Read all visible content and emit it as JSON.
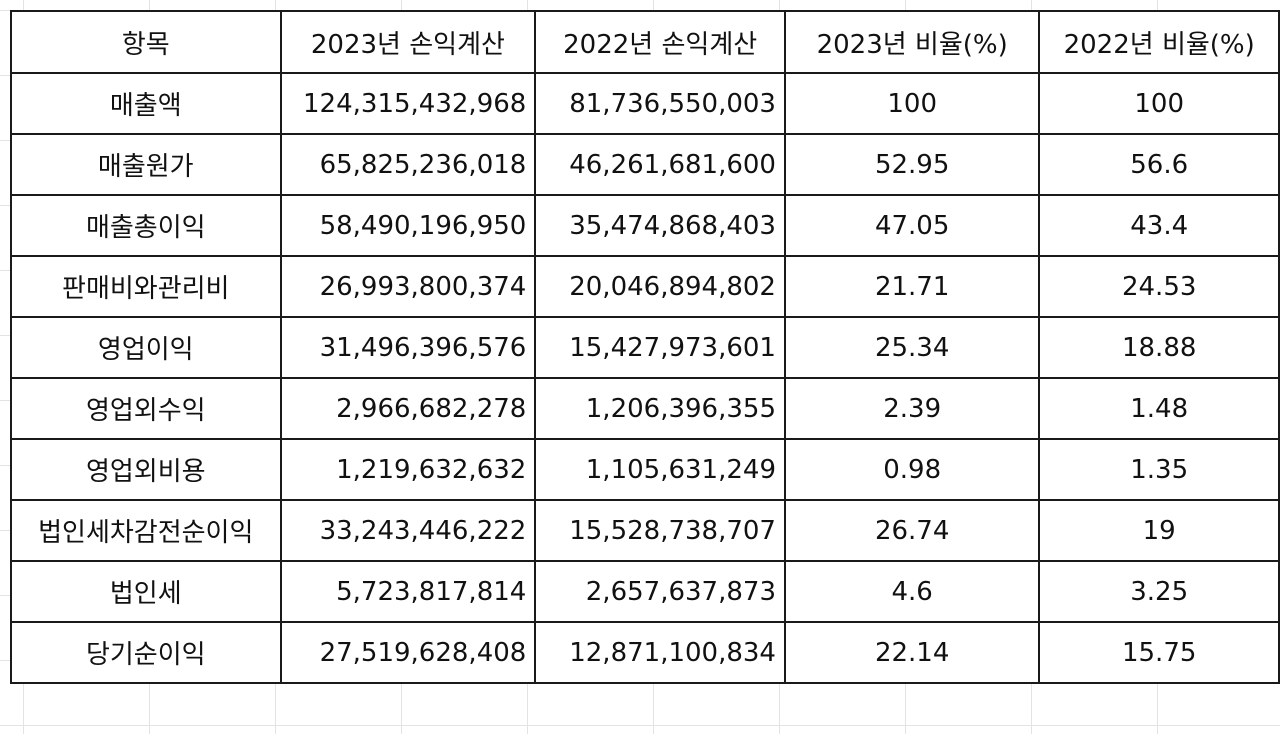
{
  "table": {
    "headers": [
      "항목",
      "2023년 손익계산",
      "2022년 손익계산",
      "2023년 비율(%)",
      "2022년 비율(%)"
    ],
    "rows": [
      [
        "매출액",
        "124,315,432,968",
        "81,736,550,003",
        "100",
        "100"
      ],
      [
        "매출원가",
        "65,825,236,018",
        "46,261,681,600",
        "52.95",
        "56.6"
      ],
      [
        "매출총이익",
        "58,490,196,950",
        "35,474,868,403",
        "47.05",
        "43.4"
      ],
      [
        "판매비와관리비",
        "26,993,800,374",
        "20,046,894,802",
        "21.71",
        "24.53"
      ],
      [
        "영업이익",
        "31,496,396,576",
        "15,427,973,601",
        "25.34",
        "18.88"
      ],
      [
        "영업외수익",
        "2,966,682,278",
        "1,206,396,355",
        "2.39",
        "1.48"
      ],
      [
        "영업외비용",
        "1,219,632,632",
        "1,105,631,249",
        "0.98",
        "1.35"
      ],
      [
        "법인세차감전순이익",
        "33,243,446,222",
        "15,528,738,707",
        "26.74",
        "19"
      ],
      [
        "법인세",
        "5,723,817,814",
        "2,657,637,873",
        "4.6",
        "3.25"
      ],
      [
        "당기순이익",
        "27,519,628,408",
        "12,871,100,834",
        "22.14",
        "15.75"
      ]
    ]
  }
}
